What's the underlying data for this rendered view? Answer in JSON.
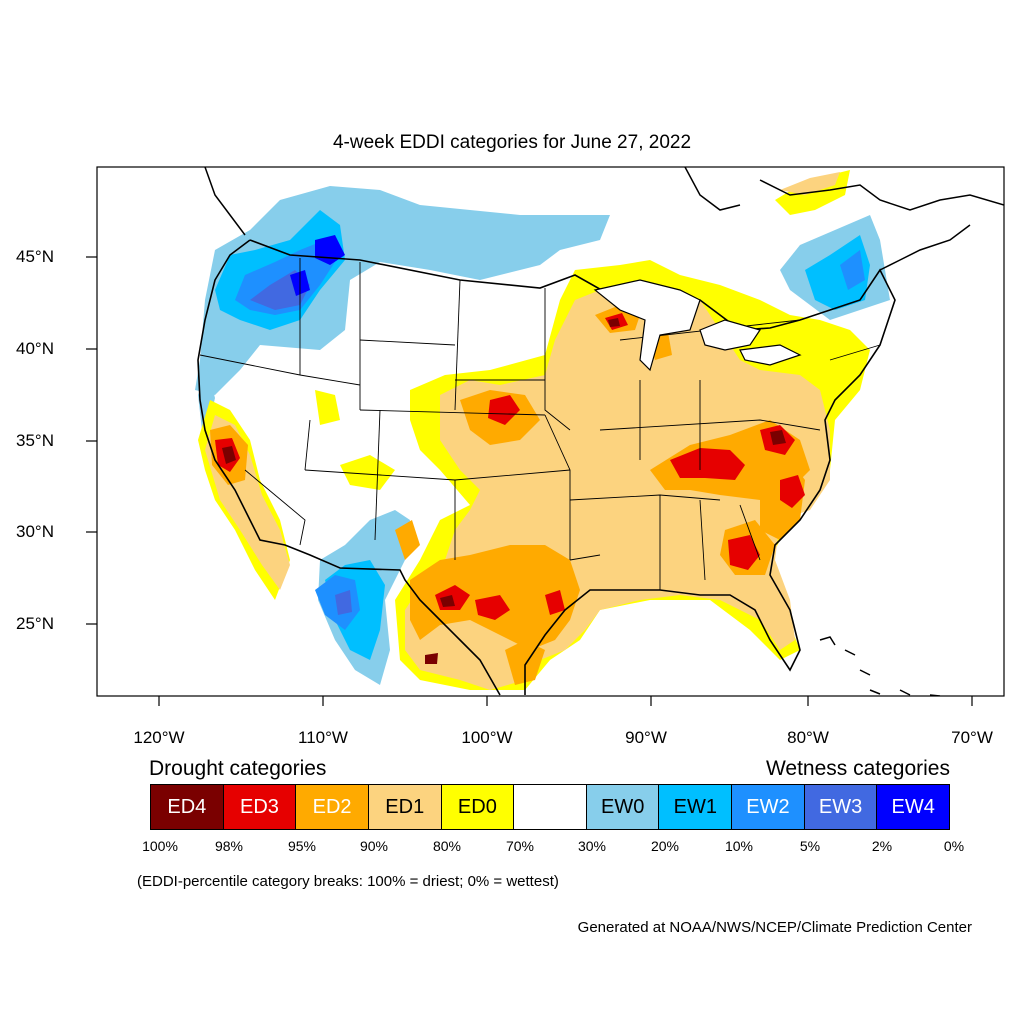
{
  "title": "4-week EDDI categories for June 27, 2022",
  "lon_labels": [
    "120°W",
    "110°W",
    "100°W",
    "90°W",
    "80°W",
    "70°W"
  ],
  "lat_labels": [
    "45°N",
    "40°N",
    "35°N",
    "30°N",
    "25°N"
  ],
  "legend": {
    "drought_heading": "Drought categories",
    "wetness_heading": "Wetness categories",
    "categories": [
      {
        "label": "ED4",
        "color": "#7a0000",
        "text_color": "#ffffff"
      },
      {
        "label": "ED3",
        "color": "#e60000",
        "text_color": "#ffffff"
      },
      {
        "label": "ED2",
        "color": "#ffaa00",
        "text_color": "#ffffff"
      },
      {
        "label": "ED1",
        "color": "#fcd37f",
        "text_color": "#000000"
      },
      {
        "label": "ED0",
        "color": "#ffff00",
        "text_color": "#000000"
      },
      {
        "label": "",
        "color": "#ffffff",
        "text_color": "#000000"
      },
      {
        "label": "EW0",
        "color": "#87ceeb",
        "text_color": "#000000"
      },
      {
        "label": "EW1",
        "color": "#00bfff",
        "text_color": "#000000"
      },
      {
        "label": "EW2",
        "color": "#1e90ff",
        "text_color": "#ffffff"
      },
      {
        "label": "EW3",
        "color": "#4169e1",
        "text_color": "#ffffff"
      },
      {
        "label": "EW4",
        "color": "#0000ff",
        "text_color": "#ffffff"
      }
    ],
    "ticks": [
      "100%",
      "98%",
      "95%",
      "90%",
      "80%",
      "70%",
      "30%",
      "20%",
      "10%",
      "5%",
      "2%",
      "0%"
    ]
  },
  "note": "(EDDI-percentile category breaks: 100% = driest; 0% = wettest)",
  "credit": "Generated at NOAA/NWS/NCEP/Climate Prediction Center"
}
